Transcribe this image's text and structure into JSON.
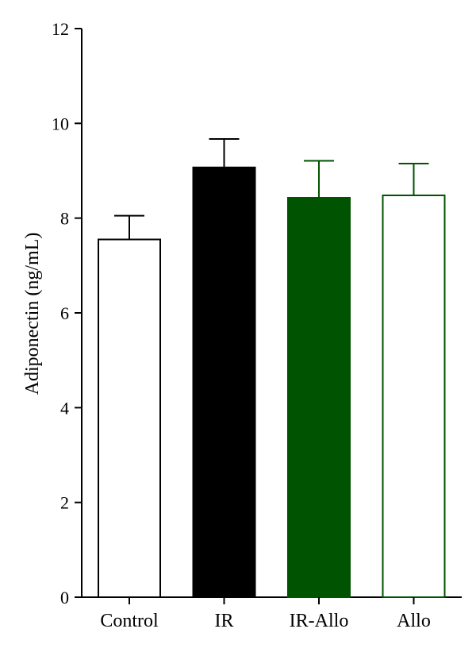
{
  "chart_data": {
    "type": "bar",
    "title": "",
    "xlabel": "",
    "ylabel": "Adiponectin (ng/mL)",
    "ylim": [
      0,
      12
    ],
    "yticks": [
      0,
      2,
      4,
      6,
      8,
      10,
      12
    ],
    "grid": false,
    "legend": "none",
    "categories": [
      "Control",
      "IR",
      "IR-Allo",
      "Allo"
    ],
    "values": [
      7.55,
      9.07,
      8.43,
      8.48
    ],
    "error_upper": [
      0.5,
      0.6,
      0.78,
      0.67
    ],
    "bar_styles": [
      {
        "fill": "#ffffff",
        "stroke": "#000000"
      },
      {
        "fill": "#000000",
        "stroke": "#000000"
      },
      {
        "fill": "#005300",
        "stroke": "#005300"
      },
      {
        "fill": "#ffffff",
        "stroke": "#005300"
      }
    ]
  }
}
